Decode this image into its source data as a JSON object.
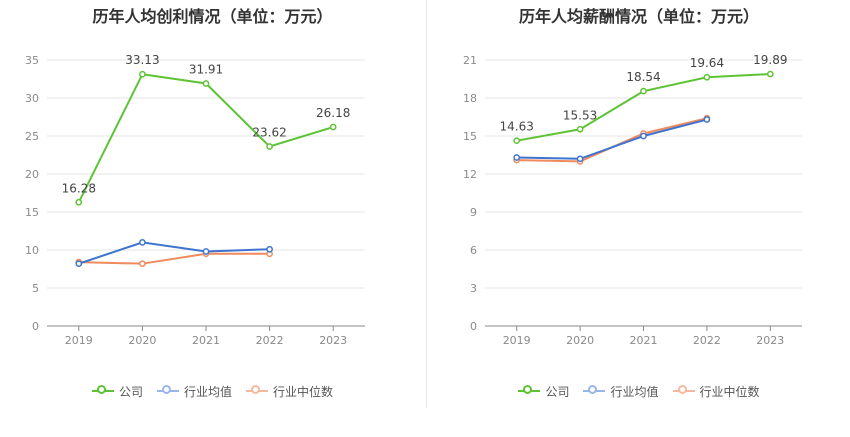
{
  "colors": {
    "company": "#5ec334",
    "industry_avg": "#3e74cf",
    "industry_median": "#f08a5d",
    "legend_industry_avg": "#9ab5e8",
    "legend_industry_median": "#f5b9a0"
  },
  "legend": {
    "company": "公司",
    "industry_avg": "行业均值",
    "industry_median": "行业中位数"
  },
  "chart_data": [
    {
      "type": "line",
      "title": "历年人均创利情况（单位：万元）",
      "categories": [
        "2019",
        "2020",
        "2021",
        "2022",
        "2023"
      ],
      "ylim": [
        0,
        35
      ],
      "yticks": [
        "0",
        "5",
        "10",
        "15",
        "20",
        "25",
        "30",
        "35"
      ],
      "grid": true,
      "legend_position": "bottom",
      "series": [
        {
          "name": "公司",
          "values": [
            16.28,
            33.13,
            31.91,
            23.62,
            26.18
          ],
          "labels": [
            "16.28",
            "33.13",
            "31.91",
            "23.62",
            "26.18"
          ]
        },
        {
          "name": "行业均值",
          "values": [
            8.2,
            11.0,
            9.8,
            10.1,
            null
          ]
        },
        {
          "name": "行业中位数",
          "values": [
            8.4,
            8.2,
            9.5,
            9.5,
            null
          ]
        }
      ]
    },
    {
      "type": "line",
      "title": "历年人均薪酬情况（单位：万元）",
      "categories": [
        "2019",
        "2020",
        "2021",
        "2022",
        "2023"
      ],
      "ylim": [
        0,
        21
      ],
      "yticks": [
        "0",
        "3",
        "6",
        "9",
        "12",
        "15",
        "18",
        "21"
      ],
      "grid": true,
      "legend_position": "bottom",
      "series": [
        {
          "name": "公司",
          "values": [
            14.63,
            15.53,
            18.54,
            19.64,
            19.89
          ],
          "labels": [
            "14.63",
            "15.53",
            "18.54",
            "19.64",
            "19.89"
          ]
        },
        {
          "name": "行业均值",
          "values": [
            13.3,
            13.2,
            15.0,
            16.3,
            null
          ]
        },
        {
          "name": "行业中位数",
          "values": [
            13.1,
            13.0,
            15.2,
            16.4,
            null
          ]
        }
      ]
    }
  ]
}
